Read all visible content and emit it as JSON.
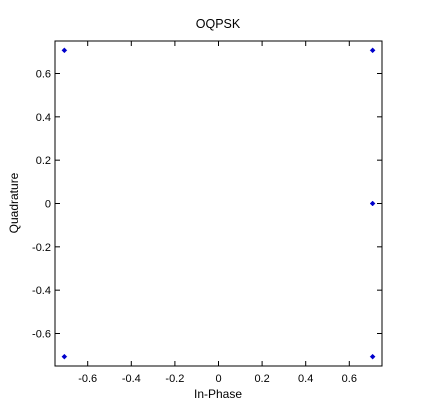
{
  "chart_data": {
    "type": "scatter",
    "title": "OQPSK",
    "xlabel": "In-Phase",
    "ylabel": "Quadrature",
    "xlim": [
      -0.75,
      0.75
    ],
    "ylim": [
      -0.75,
      0.75
    ],
    "xticks": [
      -0.6,
      -0.4,
      -0.2,
      0,
      0.2,
      0.4,
      0.6
    ],
    "yticks": [
      -0.6,
      -0.4,
      -0.2,
      0,
      0.2,
      0.4,
      0.6
    ],
    "xtick_labels": [
      "-0.6",
      "-0.4",
      "-0.2",
      "0",
      "0.2",
      "0.4",
      "0.6"
    ],
    "ytick_labels": [
      "-0.6",
      "-0.4",
      "-0.2",
      "0",
      "0.2",
      "0.4",
      "0.6"
    ],
    "grid": false,
    "marker_color": "#0000cc",
    "points": [
      {
        "x": -0.707,
        "y": 0.707
      },
      {
        "x": 0.707,
        "y": 0.707
      },
      {
        "x": 0.707,
        "y": 0
      },
      {
        "x": -0.707,
        "y": -0.707
      },
      {
        "x": 0.707,
        "y": -0.707
      }
    ]
  }
}
